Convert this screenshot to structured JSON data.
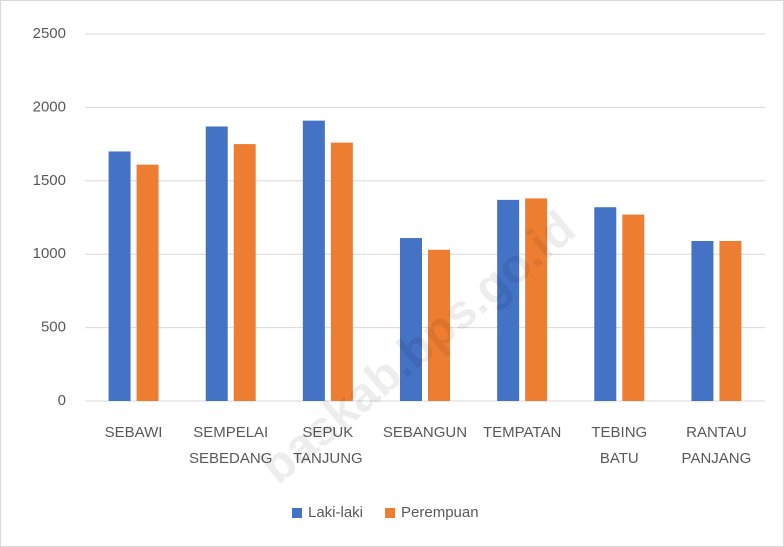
{
  "chart_data": {
    "type": "bar",
    "categories": [
      "SEBAWI",
      "SEMPELAI SEBEDANG",
      "SEPUK TANJUNG",
      "SEBANGUN",
      "TEMPATAN",
      "TEBING BATU",
      "RANTAU PANJANG"
    ],
    "series": [
      {
        "name": "Laki-laki",
        "color": "#4472c4",
        "values": [
          1700,
          1870,
          1910,
          1110,
          1370,
          1320,
          1090
        ]
      },
      {
        "name": "Perempuan",
        "color": "#ed7d31",
        "values": [
          1610,
          1750,
          1760,
          1030,
          1380,
          1270,
          1090
        ]
      }
    ],
    "ylim": [
      0,
      2500
    ],
    "yticks": [
      0,
      500,
      1000,
      1500,
      2000,
      2500
    ],
    "grid": true,
    "legend": "bottom",
    "watermark": "baskab.bps.go.id"
  }
}
